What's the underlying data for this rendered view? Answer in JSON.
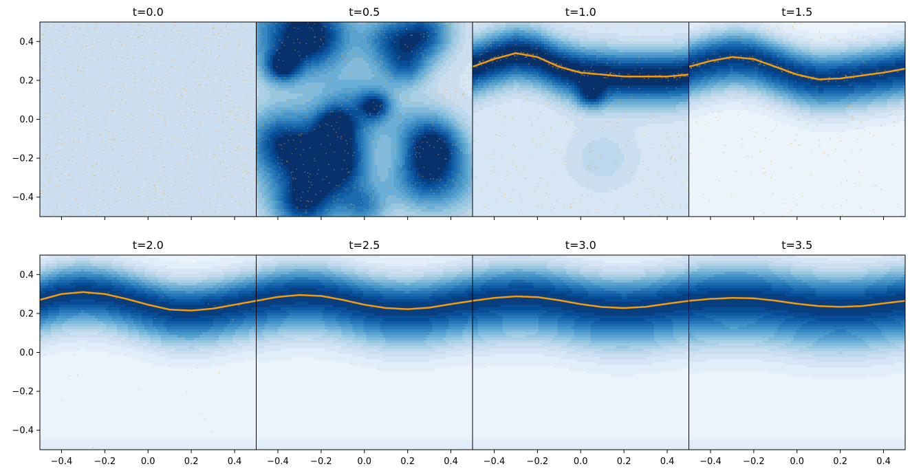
{
  "chart_data": {
    "type": "heatmap",
    "description_type": "contour density + particle scatter, small multiples",
    "layout": {
      "rows": 2,
      "cols": 4,
      "sharex": true,
      "sharey": true
    },
    "xlim": [
      -0.5,
      0.5
    ],
    "ylim": [
      -0.5,
      0.5
    ],
    "xticks": [
      -0.4,
      -0.2,
      0.0,
      0.2,
      0.4
    ],
    "xtick_labels": [
      "−0.4",
      "−0.2",
      "0.0",
      "0.2",
      "0.4"
    ],
    "yticks": [
      0.4,
      0.2,
      0.0,
      -0.2,
      -0.4
    ],
    "ytick_labels": [
      "0.4",
      "0.2",
      "0.0",
      "−0.2",
      "−0.4"
    ],
    "colormap": "Blues",
    "particle_color": "#f5a623",
    "curve_color": "#f39c12",
    "panels": [
      {
        "title": "t=0.0",
        "t": 0.0,
        "curve": null,
        "scatter_count": 900
      },
      {
        "title": "t=0.5",
        "t": 0.5,
        "curve": null,
        "scatter_count": 700
      },
      {
        "title": "t=1.0",
        "t": 1.0,
        "curve": {
          "x": [
            -0.5,
            -0.4,
            -0.3,
            -0.2,
            -0.1,
            0.0,
            0.1,
            0.2,
            0.3,
            0.4,
            0.5
          ],
          "y": [
            0.27,
            0.31,
            0.34,
            0.32,
            0.27,
            0.24,
            0.23,
            0.22,
            0.22,
            0.22,
            0.23
          ]
        },
        "scatter_count": 500
      },
      {
        "title": "t=1.5",
        "t": 1.5,
        "curve": {
          "x": [
            -0.5,
            -0.4,
            -0.3,
            -0.2,
            -0.1,
            0.0,
            0.1,
            0.2,
            0.3,
            0.4,
            0.5
          ],
          "y": [
            0.27,
            0.3,
            0.32,
            0.31,
            0.27,
            0.23,
            0.205,
            0.21,
            0.225,
            0.24,
            0.26
          ]
        },
        "scatter_count": 300
      },
      {
        "title": "t=2.0",
        "t": 2.0,
        "curve": {
          "x": [
            -0.5,
            -0.4,
            -0.3,
            -0.2,
            -0.1,
            0.0,
            0.1,
            0.2,
            0.3,
            0.4,
            0.5
          ],
          "y": [
            0.27,
            0.3,
            0.31,
            0.3,
            0.275,
            0.245,
            0.22,
            0.215,
            0.225,
            0.245,
            0.265
          ]
        },
        "scatter_count": 40
      },
      {
        "title": "t=2.5",
        "t": 2.5,
        "curve": {
          "x": [
            -0.5,
            -0.4,
            -0.3,
            -0.2,
            -0.1,
            0.0,
            0.1,
            0.2,
            0.3,
            0.4,
            0.5
          ],
          "y": [
            0.265,
            0.285,
            0.295,
            0.29,
            0.27,
            0.245,
            0.228,
            0.222,
            0.23,
            0.248,
            0.265
          ]
        },
        "scatter_count": 3
      },
      {
        "title": "t=3.0",
        "t": 3.0,
        "curve": {
          "x": [
            -0.5,
            -0.4,
            -0.3,
            -0.2,
            -0.1,
            0.0,
            0.1,
            0.2,
            0.3,
            0.4,
            0.5
          ],
          "y": [
            0.265,
            0.28,
            0.288,
            0.284,
            0.268,
            0.248,
            0.233,
            0.228,
            0.234,
            0.25,
            0.265
          ]
        },
        "scatter_count": 0
      },
      {
        "title": "t=3.5",
        "t": 3.5,
        "curve": {
          "x": [
            -0.5,
            -0.4,
            -0.3,
            -0.2,
            -0.1,
            0.0,
            0.1,
            0.2,
            0.3,
            0.4,
            0.5
          ],
          "y": [
            0.265,
            0.275,
            0.28,
            0.278,
            0.266,
            0.25,
            0.238,
            0.234,
            0.238,
            0.252,
            0.265
          ]
        },
        "scatter_count": 0
      }
    ]
  }
}
